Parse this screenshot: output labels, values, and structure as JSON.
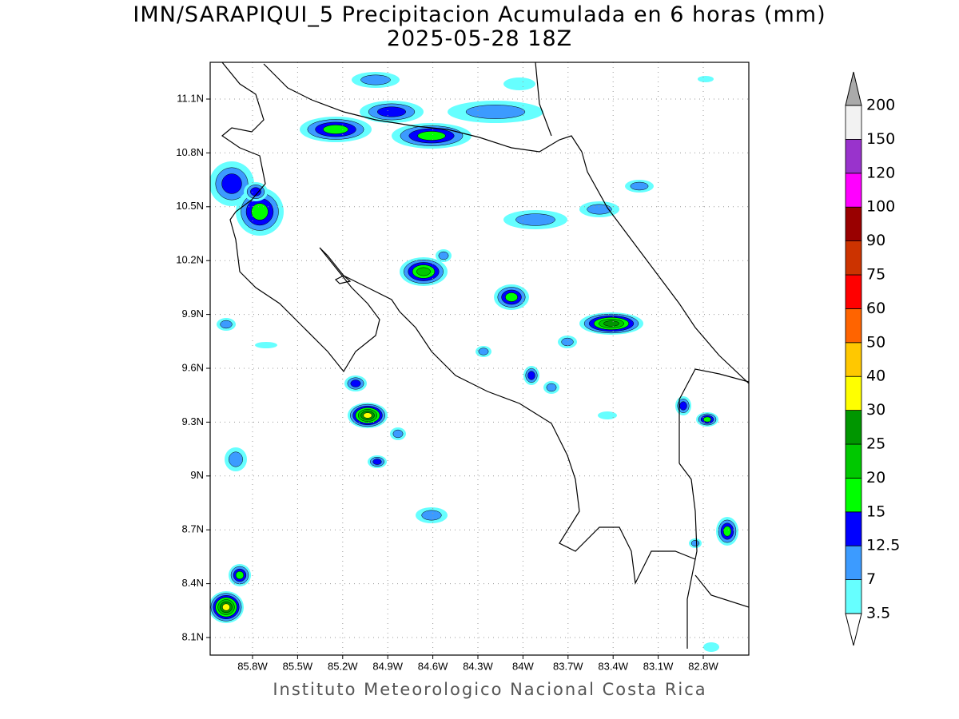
{
  "title": "IMN/SARAPIQUI_5 Precipitacion Acumulada en 6 horas (mm)",
  "subtitle": "2025-05-28 18Z",
  "map": {
    "lon_labels": [
      "85.8W",
      "85.5W",
      "85.2W",
      "84.9W",
      "84.6W",
      "84.3W",
      "84W",
      "83.7W",
      "83.4W",
      "83.1W",
      "82.8W"
    ],
    "lat_labels": [
      "11.1N",
      "10.8N",
      "10.5N",
      "10.2N",
      "9.9N",
      "9.6N",
      "9.3N",
      "9N",
      "8.7N",
      "8.4N",
      "8.1N"
    ]
  },
  "colorbar": {
    "levels": [
      3.5,
      7,
      12.5,
      15,
      20,
      25,
      30,
      40,
      50,
      60,
      75,
      90,
      100,
      120,
      150,
      200
    ],
    "colors": [
      "#66ffff",
      "#3c9bff",
      "#0000ff",
      "#00ff00",
      "#00c800",
      "#009600",
      "#ffff00",
      "#ffc800",
      "#ff6400",
      "#ff0000",
      "#cc3300",
      "#990000",
      "#ff00ff",
      "#9933cc",
      "#f2f2f2"
    ],
    "below_color": "#ffffff",
    "above_color": "#aaaaaa"
  },
  "footer": "Instituto Meteorologico Nacional Costa Rica"
}
